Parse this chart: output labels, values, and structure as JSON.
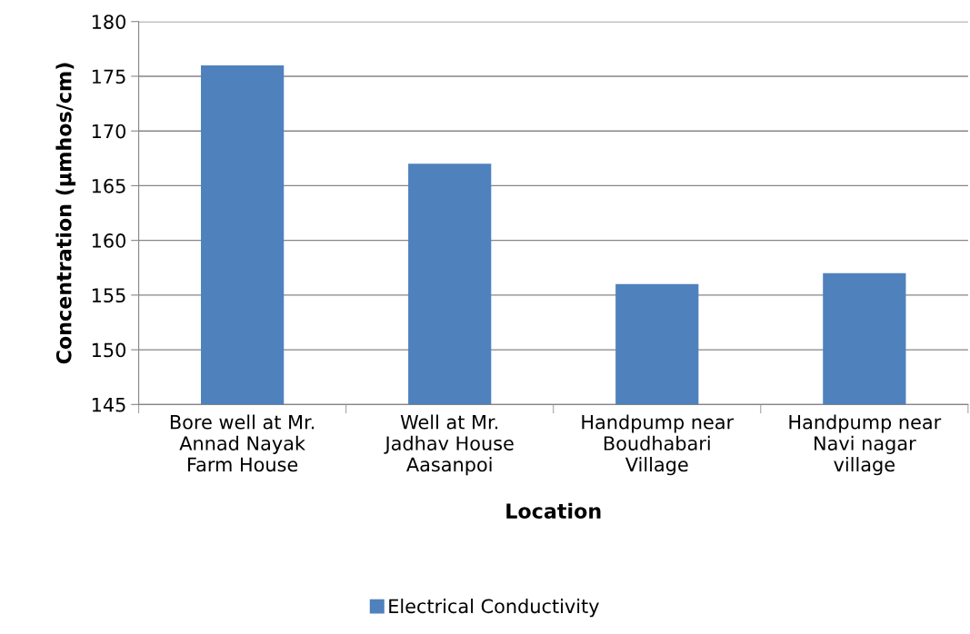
{
  "chart_data": {
    "type": "bar",
    "xlabel": "Location",
    "ylabel": "Concentration (µmhos/cm)",
    "categories": [
      "Bore well at Mr.\nAnnad Nayak\nFarm House",
      "Well at Mr.\nJadhav House\nAasanpoi",
      "Handpump near\nBoudhabari\nVillage",
      "Handpump near\nNavi nagar\nvillage"
    ],
    "series": [
      {
        "name": "Electrical Conductivity",
        "color": "#4f81bd",
        "values": [
          176,
          167,
          156,
          157
        ]
      }
    ],
    "ylim": [
      145,
      180
    ],
    "yticks": [
      145,
      150,
      155,
      160,
      165,
      170,
      175,
      180
    ],
    "grid": "y",
    "legend": "bottom"
  }
}
